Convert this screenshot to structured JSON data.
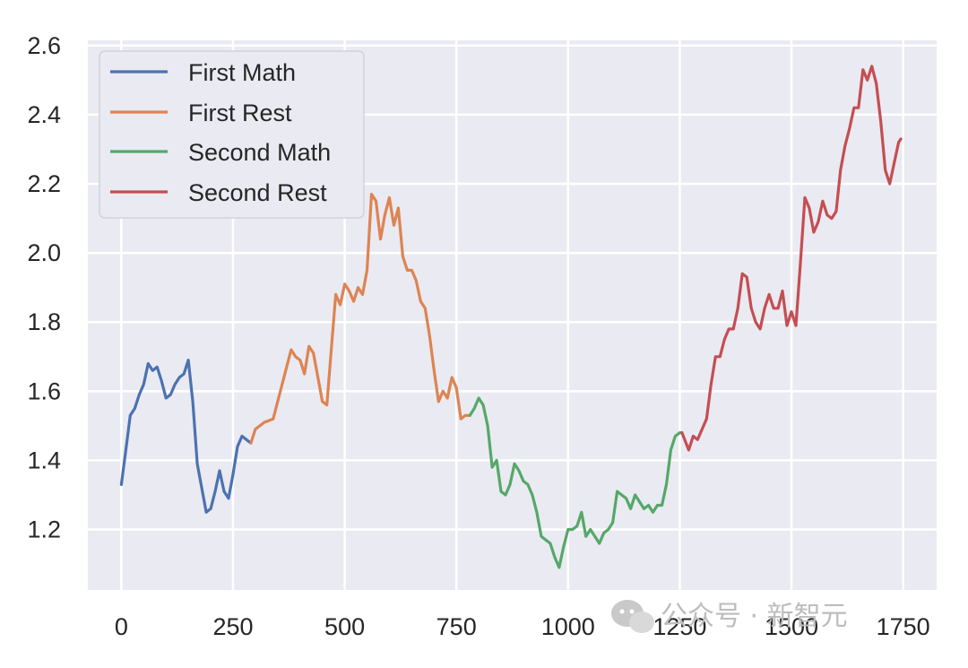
{
  "chart_data": {
    "type": "line",
    "title": "",
    "xlabel": "",
    "ylabel": "",
    "xlim": [
      -75,
      1825
    ],
    "ylim": [
      1.025,
      2.615
    ],
    "xticks": [
      0,
      250,
      500,
      750,
      1000,
      1250,
      1500,
      1750
    ],
    "xtick_labels": [
      "0",
      "250",
      "500",
      "750",
      "1000",
      "1250",
      "1500",
      "1750"
    ],
    "yticks": [
      1.2,
      1.4,
      1.6,
      1.8,
      2.0,
      2.2,
      2.4,
      2.6
    ],
    "ytick_labels": [
      "1.2",
      "1.4",
      "1.6",
      "1.8",
      "2.0",
      "2.2",
      "2.4",
      "2.6"
    ],
    "grid": true,
    "legend_position": "top-left",
    "series": [
      {
        "name": "First Math",
        "color": "#4c72b0",
        "x": [
          0,
          10,
          20,
          30,
          40,
          50,
          60,
          70,
          80,
          90,
          100,
          110,
          120,
          130,
          140,
          150,
          160,
          170,
          180,
          190,
          200,
          210,
          220,
          230,
          240,
          250,
          260,
          270,
          280,
          290
        ],
        "y": [
          1.33,
          1.43,
          1.53,
          1.55,
          1.59,
          1.62,
          1.68,
          1.66,
          1.67,
          1.63,
          1.58,
          1.59,
          1.62,
          1.64,
          1.65,
          1.69,
          1.57,
          1.39,
          1.32,
          1.25,
          1.26,
          1.31,
          1.37,
          1.31,
          1.29,
          1.36,
          1.44,
          1.47,
          1.46,
          1.45
        ]
      },
      {
        "name": "First Rest",
        "color": "#dd8452",
        "x": [
          290,
          300,
          320,
          340,
          350,
          360,
          370,
          380,
          390,
          400,
          410,
          420,
          430,
          440,
          450,
          460,
          470,
          480,
          490,
          500,
          510,
          520,
          530,
          540,
          550,
          560,
          570,
          580,
          590,
          600,
          610,
          620,
          630,
          640,
          650,
          660,
          670,
          680,
          690,
          700,
          710,
          720,
          730,
          740,
          750,
          760,
          770,
          780
        ],
        "y": [
          1.45,
          1.49,
          1.51,
          1.52,
          1.57,
          1.62,
          1.67,
          1.72,
          1.7,
          1.69,
          1.65,
          1.73,
          1.71,
          1.64,
          1.57,
          1.56,
          1.72,
          1.88,
          1.85,
          1.91,
          1.89,
          1.86,
          1.9,
          1.88,
          1.95,
          2.17,
          2.15,
          2.04,
          2.11,
          2.16,
          2.08,
          2.13,
          1.99,
          1.95,
          1.95,
          1.92,
          1.86,
          1.84,
          1.76,
          1.66,
          1.57,
          1.6,
          1.58,
          1.64,
          1.61,
          1.52,
          1.53,
          1.53
        ]
      },
      {
        "name": "Second Math",
        "color": "#55a868",
        "x": [
          780,
          790,
          800,
          810,
          820,
          830,
          840,
          850,
          860,
          870,
          880,
          890,
          900,
          910,
          920,
          930,
          940,
          950,
          960,
          970,
          980,
          990,
          1000,
          1010,
          1020,
          1030,
          1040,
          1050,
          1060,
          1070,
          1080,
          1090,
          1100,
          1110,
          1120,
          1130,
          1140,
          1150,
          1160,
          1170,
          1180,
          1190,
          1200,
          1210,
          1220,
          1230,
          1240,
          1250,
          1255
        ],
        "y": [
          1.53,
          1.55,
          1.58,
          1.56,
          1.5,
          1.38,
          1.4,
          1.31,
          1.3,
          1.33,
          1.39,
          1.37,
          1.34,
          1.33,
          1.3,
          1.25,
          1.18,
          1.17,
          1.16,
          1.12,
          1.09,
          1.15,
          1.2,
          1.2,
          1.21,
          1.25,
          1.18,
          1.2,
          1.18,
          1.16,
          1.19,
          1.2,
          1.22,
          1.31,
          1.3,
          1.29,
          1.26,
          1.3,
          1.28,
          1.26,
          1.27,
          1.25,
          1.27,
          1.27,
          1.33,
          1.43,
          1.47,
          1.48,
          1.48
        ]
      },
      {
        "name": "Second Rest",
        "color": "#c44e52",
        "x": [
          1255,
          1270,
          1280,
          1290,
          1300,
          1310,
          1320,
          1330,
          1340,
          1350,
          1360,
          1370,
          1380,
          1390,
          1400,
          1410,
          1420,
          1430,
          1440,
          1450,
          1460,
          1470,
          1480,
          1490,
          1500,
          1510,
          1520,
          1530,
          1540,
          1550,
          1560,
          1570,
          1580,
          1590,
          1600,
          1610,
          1620,
          1630,
          1640,
          1650,
          1660,
          1670,
          1680,
          1690,
          1700,
          1710,
          1720,
          1730,
          1740,
          1745
        ],
        "y": [
          1.48,
          1.43,
          1.47,
          1.46,
          1.49,
          1.52,
          1.62,
          1.7,
          1.7,
          1.75,
          1.78,
          1.78,
          1.84,
          1.94,
          1.93,
          1.84,
          1.8,
          1.78,
          1.84,
          1.88,
          1.84,
          1.84,
          1.89,
          1.79,
          1.83,
          1.79,
          1.97,
          2.16,
          2.13,
          2.06,
          2.09,
          2.15,
          2.11,
          2.1,
          2.12,
          2.24,
          2.31,
          2.36,
          2.42,
          2.42,
          2.53,
          2.5,
          2.54,
          2.49,
          2.38,
          2.24,
          2.2,
          2.26,
          2.32,
          2.33
        ]
      }
    ]
  },
  "watermark": {
    "text": "公众号 · 新智元",
    "icon": "wechat-icon"
  }
}
